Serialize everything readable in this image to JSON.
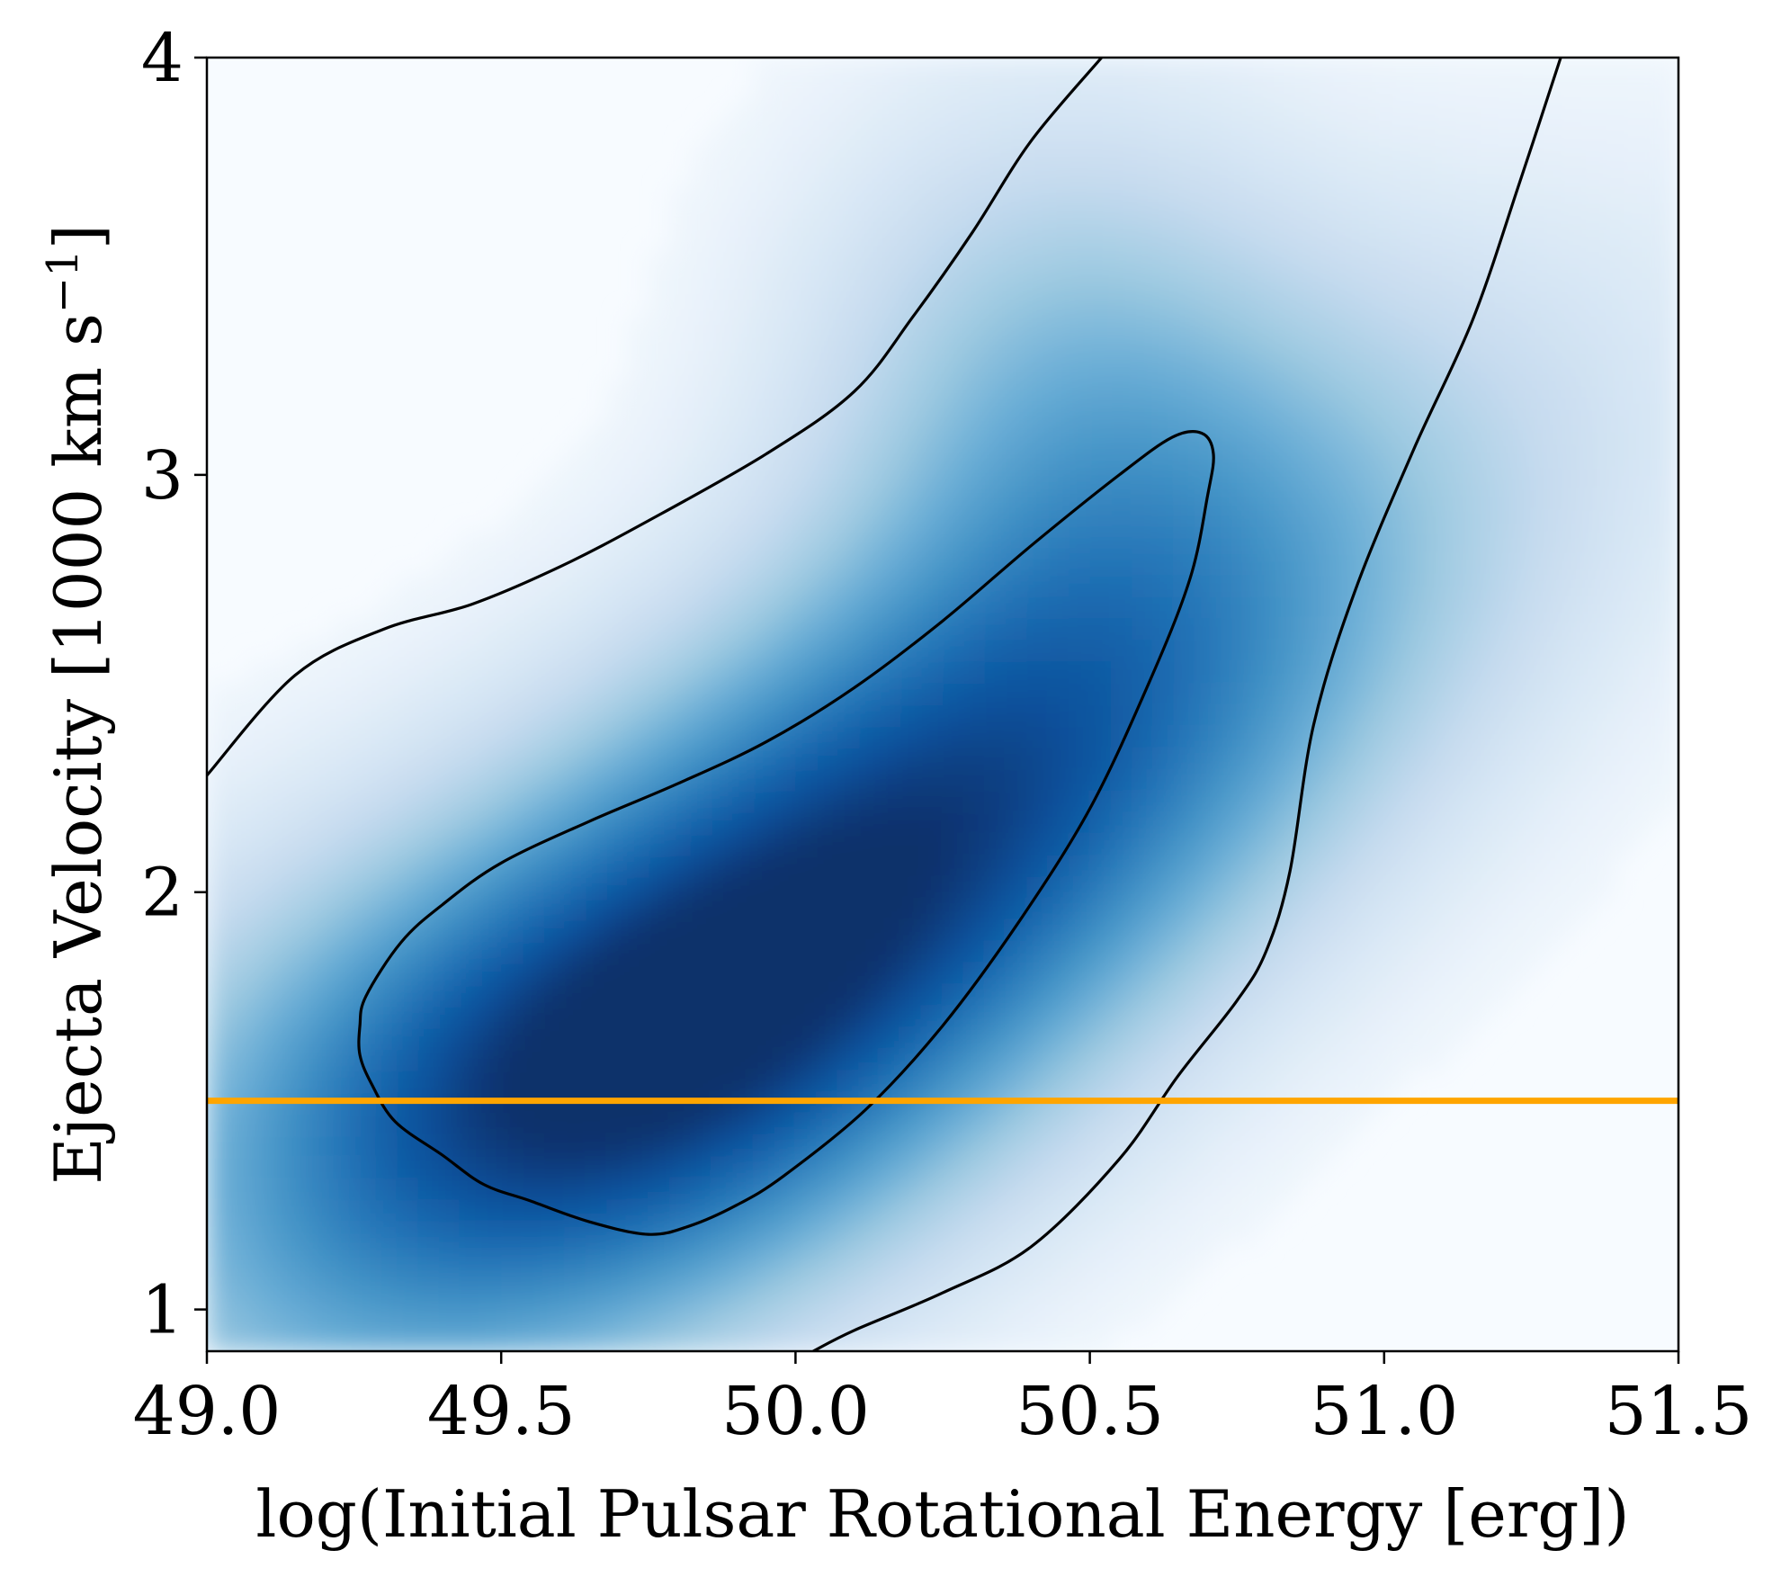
{
  "chart_data": {
    "type": "heatmap",
    "xlabel": "log(Initial Pulsar Rotational Energy [erg])",
    "ylabel": "Ejecta Velocity [1000 km s",
    "ylabel_exponent": "−1",
    "ylabel_close": "]",
    "xlim": [
      49.0,
      51.5
    ],
    "ylim": [
      0.9,
      4.0
    ],
    "xticks": [
      49.0,
      49.5,
      50.0,
      50.5,
      51.0,
      51.5
    ],
    "xtick_labels": [
      "49.0",
      "49.5",
      "50.0",
      "50.5",
      "51.0",
      "51.5"
    ],
    "yticks": [
      1,
      2,
      3,
      4
    ],
    "ytick_labels": [
      "1",
      "2",
      "3",
      "4"
    ],
    "grid": false,
    "colormap": "Blues",
    "density_peak": {
      "x": 50.05,
      "y": 1.95
    },
    "contours": [
      {
        "level": "inner",
        "x": [
          49.26,
          49.27,
          49.33,
          49.4,
          49.5,
          49.65,
          49.8,
          49.95,
          50.1,
          50.25,
          50.4,
          50.55,
          50.64,
          50.69,
          50.71,
          50.7,
          50.67,
          50.6,
          50.5,
          50.38,
          50.25,
          50.12,
          49.98,
          49.9,
          49.82,
          49.75,
          49.65,
          49.55,
          49.47,
          49.4,
          49.32,
          49.28,
          49.26
        ],
        "y": [
          1.68,
          1.75,
          1.88,
          1.97,
          2.07,
          2.17,
          2.26,
          2.36,
          2.49,
          2.65,
          2.83,
          3.0,
          3.09,
          3.1,
          3.05,
          2.95,
          2.75,
          2.5,
          2.2,
          1.93,
          1.68,
          1.48,
          1.32,
          1.25,
          1.2,
          1.18,
          1.21,
          1.26,
          1.3,
          1.37,
          1.45,
          1.54,
          1.61
        ]
      },
      {
        "level": "outer",
        "x": [
          49.0,
          49.15,
          49.3,
          49.45,
          49.6,
          49.75,
          49.95,
          50.1,
          50.2,
          50.3,
          50.4,
          50.52
        ],
        "y": [
          2.28,
          2.52,
          2.63,
          2.69,
          2.78,
          2.89,
          3.05,
          3.2,
          3.38,
          3.58,
          3.8,
          4.0
        ]
      },
      {
        "level": "outer",
        "x": [
          50.03,
          50.1,
          50.25,
          50.4,
          50.55,
          50.65,
          50.75,
          50.8,
          50.84,
          50.88,
          50.95,
          51.05,
          51.15,
          51.23,
          51.3
        ],
        "y": [
          0.9,
          0.95,
          1.04,
          1.15,
          1.36,
          1.56,
          1.74,
          1.86,
          2.05,
          2.4,
          2.72,
          3.06,
          3.37,
          3.7,
          4.0
        ]
      }
    ],
    "reference_line": {
      "y": 1.5,
      "color": "#FFA500",
      "orientation": "horizontal"
    }
  }
}
